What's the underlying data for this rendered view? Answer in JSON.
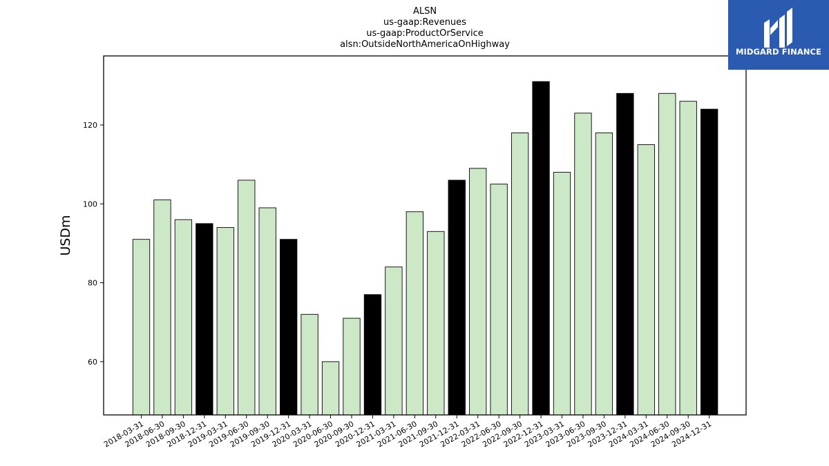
{
  "logo": {
    "text": "MIDGARD FINANCE",
    "bg_color": "#2a5bb0",
    "icon": "midgard-m-logo-icon"
  },
  "chart_data": {
    "type": "bar",
    "title_lines": [
      "ALSN",
      "us-gaap:Revenues",
      "us-gaap:ProductOrService",
      "alsn:OutsideNorthAmericaOnHighway"
    ],
    "ylabel": "USDm",
    "xlabel": "",
    "ylim": [
      46.5,
      137.5
    ],
    "yticks": [
      60,
      80,
      100,
      120
    ],
    "grid": false,
    "colors": {
      "quarter": "#cce8c6",
      "year_end": "#000000",
      "edge": "#000000"
    },
    "categories": [
      "2018-03-31",
      "2018-06-30",
      "2018-09-30",
      "2018-12-31",
      "2019-03-31",
      "2019-06-30",
      "2019-09-30",
      "2019-12-31",
      "2020-03-31",
      "2020-06-30",
      "2020-09-30",
      "2020-12-31",
      "2021-03-31",
      "2021-06-30",
      "2021-09-30",
      "2021-12-31",
      "2022-03-31",
      "2022-06-30",
      "2022-09-30",
      "2022-12-31",
      "2023-03-31",
      "2023-06-30",
      "2023-09-30",
      "2023-12-31",
      "2024-03-31",
      "2024-06-30",
      "2024-09-30",
      "2024-12-31"
    ],
    "values": [
      91,
      101,
      96,
      95,
      94,
      106,
      99,
      91,
      72,
      60,
      71,
      77,
      84,
      98,
      93,
      106,
      109,
      105,
      118,
      131,
      108,
      123,
      118,
      128,
      115,
      128,
      126,
      124
    ],
    "highlight": [
      false,
      false,
      false,
      true,
      false,
      false,
      false,
      true,
      false,
      false,
      false,
      true,
      false,
      false,
      false,
      true,
      false,
      false,
      false,
      true,
      false,
      false,
      false,
      true,
      false,
      false,
      false,
      true
    ]
  }
}
